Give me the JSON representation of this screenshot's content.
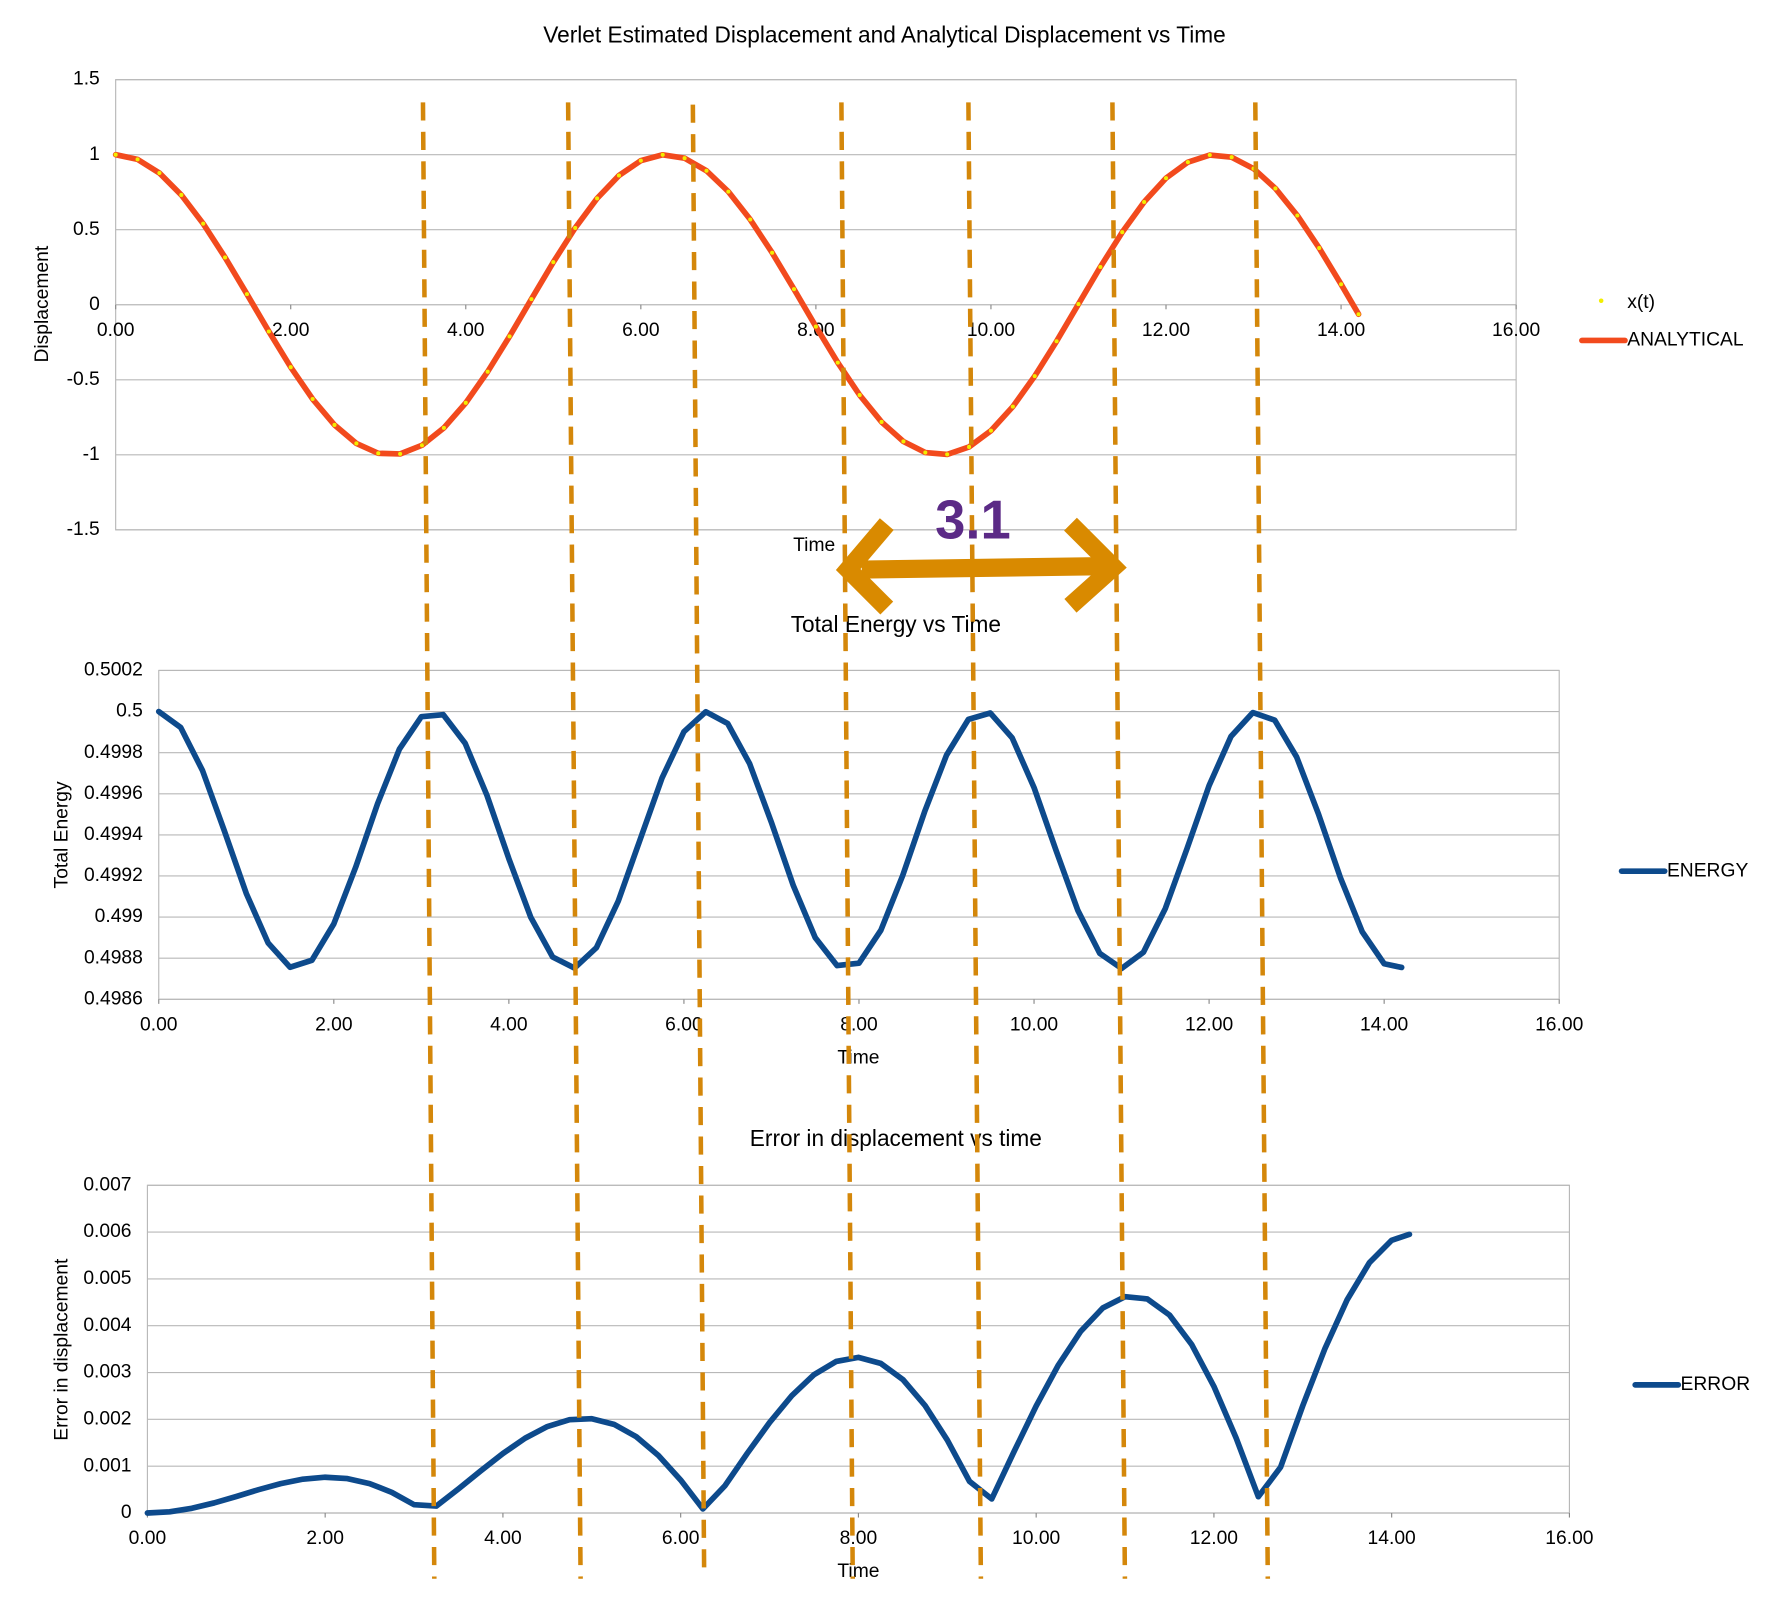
{
  "chart_data": [
    {
      "type": "line",
      "title": "Verlet Estimated Displacement and Analytical Displacement vs Time",
      "x_label": "Time",
      "y_label": "Displacement",
      "annotation": "3.1",
      "x": [
        0,
        0.25,
        0.5,
        0.75,
        1,
        1.25,
        1.5,
        1.75,
        2,
        2.25,
        2.5,
        2.75,
        3,
        3.25,
        3.5,
        3.75,
        4,
        4.25,
        4.5,
        4.75,
        5,
        5.25,
        5.5,
        5.75,
        6,
        6.25,
        6.5,
        6.75,
        7,
        7.25,
        7.5,
        7.75,
        8,
        8.25,
        8.5,
        8.75,
        9,
        9.25,
        9.5,
        9.75,
        10,
        10.25,
        10.5,
        10.75,
        11,
        11.25,
        11.5,
        11.75,
        12,
        12.25,
        12.5,
        12.75,
        13,
        13.25,
        13.5,
        13.75,
        14,
        14.2
      ],
      "series": [
        {
          "name": "x(t)",
          "color": "#f2ee00",
          "style": "markers",
          "values": [
            1,
            0.9689,
            0.8776,
            0.7317,
            0.5403,
            0.3153,
            0.0707,
            -0.1782,
            -0.4161,
            -0.6282,
            -0.8011,
            -0.9243,
            -0.99,
            -0.9941,
            -0.9365,
            -0.8206,
            -0.6536,
            -0.4461,
            -0.2108,
            0.0376,
            0.2837,
            0.5121,
            0.7087,
            0.8612,
            0.9602,
            0.9994,
            0.9766,
            0.893,
            0.7539,
            0.568,
            0.3466,
            0.1039,
            -0.1455,
            -0.3857,
            -0.602,
            -0.7811,
            -0.9111,
            -0.9848,
            -0.9972,
            -0.9476,
            -0.8391,
            -0.6788,
            -0.4755,
            -0.2431,
            0.0044,
            0.2516,
            0.4833,
            0.6846,
            0.8439,
            0.9503,
            0.9978,
            0.9832,
            0.9074,
            0.7751,
            0.5949,
            0.3776,
            0.1367,
            -0.0632
          ]
        },
        {
          "name": "ANALYTICAL",
          "color": "#f24a1d",
          "style": "line",
          "values": [
            1,
            0.9689,
            0.8776,
            0.7317,
            0.5403,
            0.3153,
            0.0707,
            -0.1782,
            -0.4161,
            -0.6282,
            -0.8011,
            -0.9243,
            -0.99,
            -0.9941,
            -0.9365,
            -0.8206,
            -0.6536,
            -0.4461,
            -0.2108,
            0.0376,
            0.2837,
            0.5121,
            0.7087,
            0.8612,
            0.9602,
            0.9994,
            0.9766,
            0.893,
            0.7539,
            0.568,
            0.3466,
            0.1039,
            -0.1455,
            -0.3857,
            -0.602,
            -0.7811,
            -0.9111,
            -0.9848,
            -0.9972,
            -0.9476,
            -0.8391,
            -0.6788,
            -0.4755,
            -0.2431,
            0.0044,
            0.2516,
            0.4833,
            0.6846,
            0.8439,
            0.9503,
            0.9978,
            0.9832,
            0.9074,
            0.7751,
            0.5949,
            0.3776,
            0.1367,
            -0.0632
          ]
        }
      ],
      "xlim": [
        0,
        16
      ],
      "xticks": [
        {
          "value": 0,
          "label": "0.00"
        },
        {
          "value": 2,
          "label": "2.00"
        },
        {
          "value": 4,
          "label": "4.00"
        },
        {
          "value": 6,
          "label": "6.00"
        },
        {
          "value": 8,
          "label": "8.00"
        },
        {
          "value": 10,
          "label": "10.00"
        },
        {
          "value": 12,
          "label": "12.00"
        },
        {
          "value": 14,
          "label": "14.00"
        },
        {
          "value": 16,
          "label": "16.00"
        }
      ],
      "ylim": [
        -1.5,
        1.5
      ],
      "yticks": [
        1.5,
        1,
        0.5,
        0,
        -0.5,
        -1,
        -1.5
      ],
      "grid": true,
      "legend": "right"
    },
    {
      "type": "line",
      "title": "Total Energy vs Time",
      "x_label": "Time",
      "y_label": "Total Energy",
      "x": [
        0,
        0.25,
        0.5,
        0.75,
        1,
        1.25,
        1.5,
        1.75,
        2,
        2.25,
        2.5,
        2.75,
        3,
        3.25,
        3.5,
        3.75,
        4,
        4.25,
        4.5,
        4.75,
        5,
        5.25,
        5.5,
        5.75,
        6,
        6.25,
        6.5,
        6.75,
        7,
        7.25,
        7.5,
        7.75,
        8,
        8.25,
        8.5,
        8.75,
        9,
        9.25,
        9.5,
        9.75,
        10,
        10.25,
        10.5,
        10.75,
        11,
        11.25,
        11.5,
        11.75,
        12,
        12.25,
        12.5,
        12.75,
        13,
        13.25,
        13.5,
        13.75,
        14,
        14.2
      ],
      "series": [
        {
          "name": "ENERGY",
          "color": "#0d4a8c",
          "style": "line",
          "values": [
            0.5,
            0.499923,
            0.499713,
            0.499419,
            0.499115,
            0.498874,
            0.498756,
            0.49879,
            0.498967,
            0.499243,
            0.499552,
            0.499818,
            0.499975,
            0.499985,
            0.499846,
            0.499592,
            0.499284,
            0.498999,
            0.498806,
            0.498752,
            0.498851,
            0.499078,
            0.499378,
            0.499677,
            0.499902,
            0.499999,
            0.499942,
            0.499747,
            0.49946,
            0.499153,
            0.4989,
            0.498764,
            0.498776,
            0.498936,
            0.499203,
            0.499513,
            0.499788,
            0.499962,
            0.499993,
            0.499872,
            0.49963,
            0.499326,
            0.499033,
            0.498824,
            0.49875,
            0.498829,
            0.499042,
            0.499336,
            0.49964,
            0.499879,
            0.499995,
            0.499958,
            0.499779,
            0.499501,
            0.499192,
            0.498928,
            0.498773,
            0.498755
          ]
        }
      ],
      "xlim": [
        0,
        16
      ],
      "xticks": [
        {
          "value": 0,
          "label": "0.00"
        },
        {
          "value": 2,
          "label": "2.00"
        },
        {
          "value": 4,
          "label": "4.00"
        },
        {
          "value": 6,
          "label": "6.00"
        },
        {
          "value": 8,
          "label": "8.00"
        },
        {
          "value": 10,
          "label": "10.00"
        },
        {
          "value": 12,
          "label": "12.00"
        },
        {
          "value": 14,
          "label": "14.00"
        },
        {
          "value": 16,
          "label": "16.00"
        }
      ],
      "ylim": [
        0.4986,
        0.5002
      ],
      "yticks": [
        0.5002,
        0.5,
        0.4998,
        0.4996,
        0.4994,
        0.4992,
        0.499,
        0.4988,
        0.4986
      ],
      "grid": true,
      "legend": "right"
    },
    {
      "type": "line",
      "title": "Error in displacement vs time",
      "x_label": "Time",
      "y_label": "Error in displacement",
      "x": [
        0,
        0.25,
        0.5,
        0.75,
        1,
        1.25,
        1.5,
        1.75,
        2,
        2.25,
        2.5,
        2.75,
        3,
        3.25,
        3.5,
        3.75,
        4,
        4.25,
        4.5,
        4.75,
        5,
        5.25,
        5.5,
        5.75,
        6,
        6.25,
        6.5,
        6.75,
        7,
        7.25,
        7.5,
        7.75,
        8,
        8.25,
        8.5,
        8.75,
        9,
        9.25,
        9.5,
        9.75,
        10,
        10.25,
        10.5,
        10.75,
        11,
        11.25,
        11.5,
        11.75,
        12,
        12.25,
        12.5,
        12.75,
        13,
        13.25,
        13.5,
        13.75,
        14,
        14.2
      ],
      "series": [
        {
          "name": "ERROR",
          "color": "#0d4a8c",
          "style": "line",
          "values": [
            0,
            2.6e-05,
            0.000101,
            0.000215,
            0.000353,
            0.000498,
            0.000628,
            0.000723,
            0.000764,
            0.000735,
            0.000628,
            0.000441,
            0.000178,
            0.000148,
            0.000516,
            0.0009,
            0.001271,
            0.001598,
            0.001847,
            0.001994,
            0.002014,
            0.001894,
            0.00163,
            0.001228,
            0.000704,
            8.7e-05,
            0.000587,
            0.001276,
            0.001932,
            0.002506,
            0.002955,
            0.003237,
            0.003324,
            0.003197,
            0.002851,
            0.002295,
            0.001558,
            0.000676,
            0.0003,
            0.001308,
            0.002285,
            0.003161,
            0.003879,
            0.00438,
            0.00462,
            0.004573,
            0.004229,
            0.003597,
            0.002704,
            0.001601,
            0.000348,
            0.000978,
            0.002294,
            0.003516,
            0.004558,
            0.005348,
            0.005825,
            0.005952
          ]
        }
      ],
      "xlim": [
        0,
        16
      ],
      "xticks": [
        {
          "value": 0,
          "label": "0.00"
        },
        {
          "value": 2,
          "label": "2.00"
        },
        {
          "value": 4,
          "label": "4.00"
        },
        {
          "value": 6,
          "label": "6.00"
        },
        {
          "value": 8,
          "label": "8.00"
        },
        {
          "value": 10,
          "label": "10.00"
        },
        {
          "value": 12,
          "label": "12.00"
        },
        {
          "value": 14,
          "label": "14.00"
        },
        {
          "value": 16,
          "label": "16.00"
        }
      ],
      "ylim": [
        0,
        0.007
      ],
      "yticks": [
        0.007,
        0.006,
        0.005,
        0.004,
        0.003,
        0.002,
        0.001,
        0
      ],
      "grid": true,
      "legend": "right"
    }
  ]
}
